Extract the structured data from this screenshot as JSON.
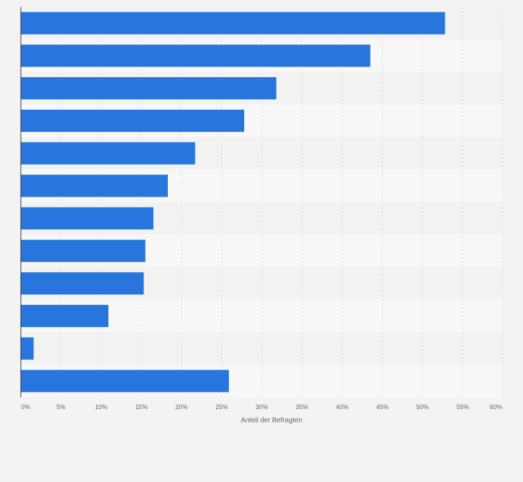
{
  "chart_data": {
    "type": "bar",
    "orientation": "horizontal",
    "xlabel": "Anteil der Befragten",
    "xlim": [
      0,
      60
    ],
    "x_ticks": [
      "0%",
      "5%",
      "10%",
      "15%",
      "20%",
      "25%",
      "30%",
      "35%",
      "40%",
      "45%",
      "50%",
      "55%",
      "60%"
    ],
    "x_tick_values": [
      0,
      5,
      10,
      15,
      20,
      25,
      30,
      35,
      40,
      45,
      50,
      55,
      60
    ],
    "values": [
      52.8,
      43.5,
      31.8,
      27.8,
      21.7,
      18.3,
      16.5,
      15.5,
      15.3,
      10.9,
      1.6,
      25.9
    ],
    "grid": true,
    "bar_color": "#2876dd"
  },
  "colors": {
    "background": "#f3f3f3",
    "band_light": "#f7f7f7",
    "band_dark": "#f2f2f2",
    "grid": "#dcdcdc",
    "axis": "#333333",
    "tick_text": "#666666"
  }
}
